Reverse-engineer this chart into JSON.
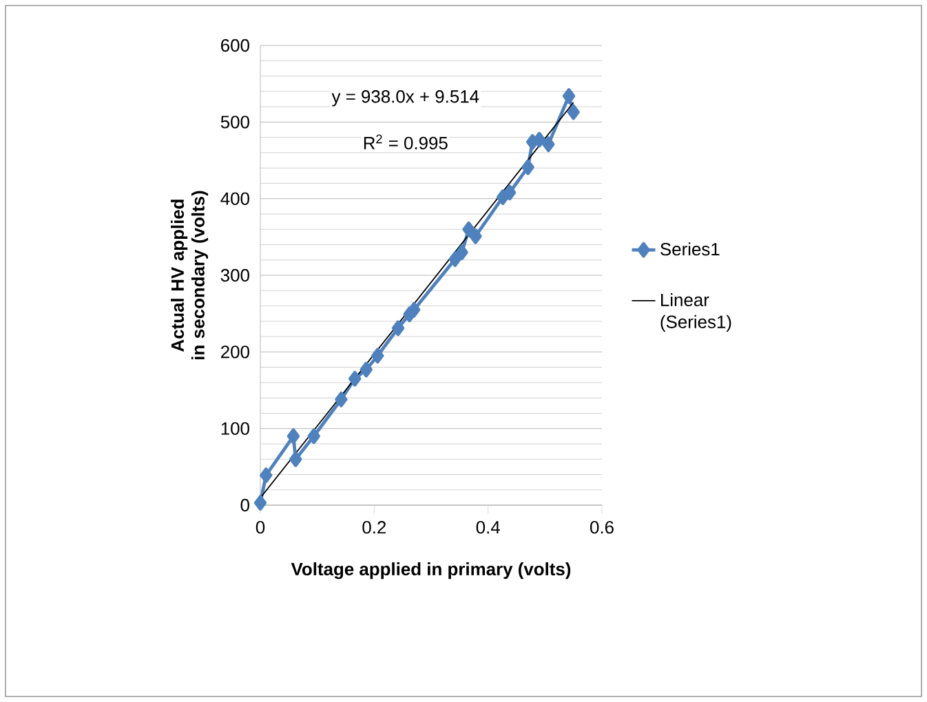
{
  "chart_data": {
    "type": "line",
    "xlabel": "Voltage applied in primary (volts)",
    "ylabel": "Actual HV applied in secondary (volts)",
    "xlim": [
      0,
      0.6
    ],
    "xticks": [
      0,
      0.2,
      0.4,
      0.6
    ],
    "ylim": [
      0,
      600
    ],
    "yticks": [
      0,
      100,
      200,
      300,
      400,
      500,
      600
    ],
    "grid": "y",
    "legend": "right",
    "marker": "diamond",
    "annotations": [
      "y = 938.0x + 9.514",
      "R$^{2}$ = 0.995"
    ],
    "series": [
      {
        "name": "Series1",
        "color": "#4f81bd",
        "x": [
          0,
          0.01,
          0.058,
          0.062,
          0.094,
          0.142,
          0.166,
          0.186,
          0.206,
          0.242,
          0.262,
          0.27,
          0.342,
          0.354,
          0.366,
          0.378,
          0.426,
          0.438,
          0.47,
          0.478,
          0.49,
          0.506,
          0.542,
          0.55
        ],
        "values": [
          3,
          39,
          90,
          60,
          90,
          138,
          165,
          177,
          195,
          231,
          249,
          255,
          321,
          330,
          360,
          351,
          402,
          408,
          441,
          474,
          477,
          471,
          534,
          513
        ]
      },
      {
        "name": "Linear (Series1)",
        "type": "line",
        "marker": "none",
        "color": "#000000",
        "x": [
          0,
          0.55
        ],
        "values": [
          9.514,
          525.4
        ]
      }
    ]
  }
}
